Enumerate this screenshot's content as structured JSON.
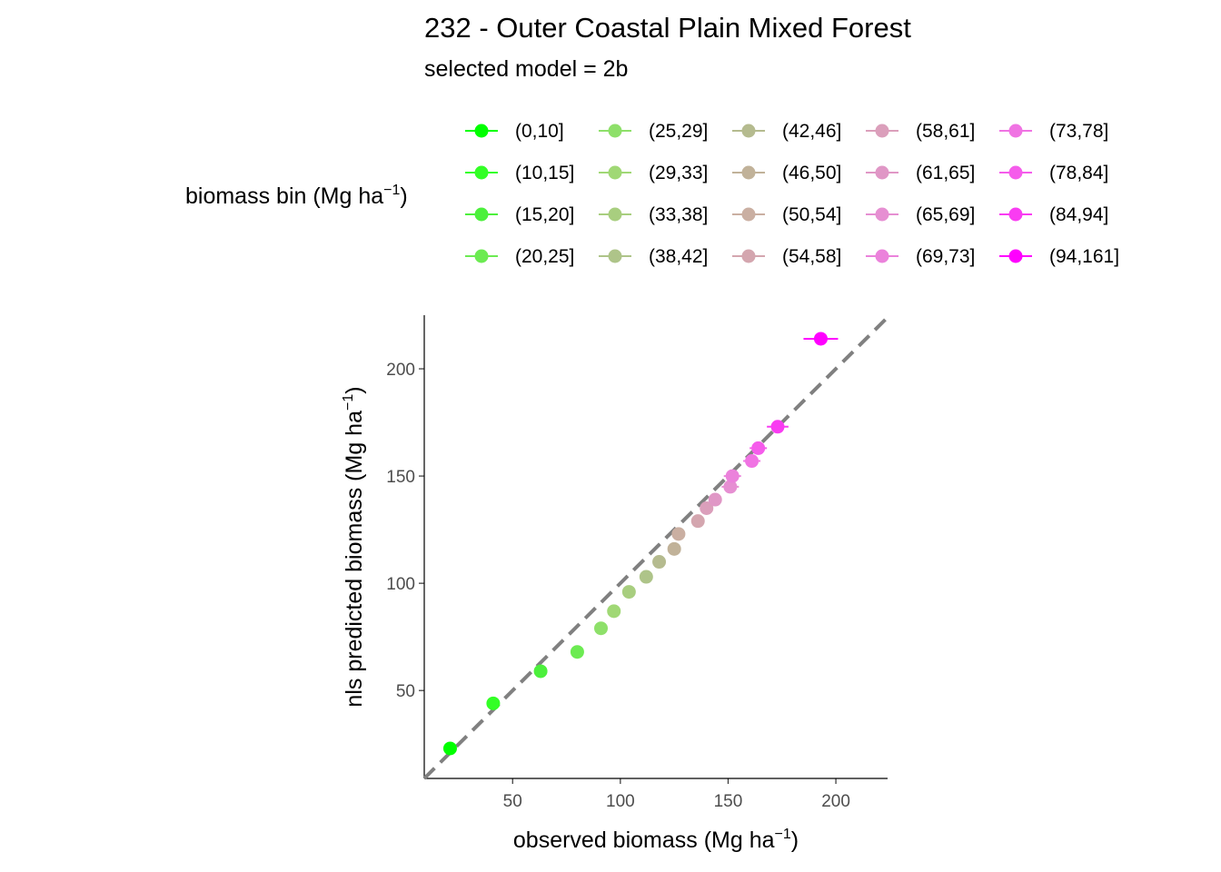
{
  "chart_data": {
    "type": "scatter",
    "title": "232 - Outer Coastal Plain Mixed Forest",
    "subtitle": "selected model = 2b",
    "xlabel": "observed biomass (Mg ha",
    "ylabel": "nls predicted biomass (Mg ha",
    "unit_exponent": "−1",
    "xlim": [
      9,
      224
    ],
    "ylim": [
      9,
      225
    ],
    "x_ticks": [
      50,
      100,
      150,
      200
    ],
    "y_ticks": [
      50,
      100,
      150,
      200
    ],
    "reference_line": "y = x",
    "legend": {
      "title": "biomass bin (Mg ha",
      "title_exponent": "−1",
      "position": "top",
      "columns": 5
    },
    "series": [
      {
        "name": "(0,10]",
        "color": "#00FF00",
        "x": 21,
        "y": 23,
        "xerr": 3
      },
      {
        "name": "(10,15]",
        "color": "#33FF26",
        "x": 41,
        "y": 44,
        "xerr": 2
      },
      {
        "name": "(15,20]",
        "color": "#4CF03C",
        "x": 63,
        "y": 59,
        "xerr": 2
      },
      {
        "name": "(20,25]",
        "color": "#6CEB52",
        "x": 80,
        "y": 68,
        "xerr": 3
      },
      {
        "name": "(25,29]",
        "color": "#8EE06A",
        "x": 91,
        "y": 79,
        "xerr": 3
      },
      {
        "name": "(29,33]",
        "color": "#A0D875",
        "x": 97,
        "y": 87,
        "xerr": 3
      },
      {
        "name": "(33,38]",
        "color": "#A8CE7F",
        "x": 104,
        "y": 96,
        "xerr": 3
      },
      {
        "name": "(38,42]",
        "color": "#AEC489",
        "x": 112,
        "y": 103,
        "xerr": 3
      },
      {
        "name": "(42,46]",
        "color": "#B5BB8F",
        "x": 118,
        "y": 110,
        "xerr": 3
      },
      {
        "name": "(46,50]",
        "color": "#C1B299",
        "x": 125,
        "y": 116,
        "xerr": 3
      },
      {
        "name": "(50,54]",
        "color": "#CAAFA2",
        "x": 127,
        "y": 123,
        "xerr": 3
      },
      {
        "name": "(54,58]",
        "color": "#D4A6AF",
        "x": 136,
        "y": 129,
        "xerr": 3
      },
      {
        "name": "(58,61]",
        "color": "#DB9FBB",
        "x": 140,
        "y": 135,
        "xerr": 3
      },
      {
        "name": "(61,65]",
        "color": "#E097C6",
        "x": 144,
        "y": 139,
        "xerr": 3
      },
      {
        "name": "(65,69]",
        "color": "#E68FD2",
        "x": 151,
        "y": 145,
        "xerr": 4
      },
      {
        "name": "(69,73]",
        "color": "#EB82DB",
        "x": 152,
        "y": 150,
        "xerr": 4
      },
      {
        "name": "(73,78]",
        "color": "#F073E3",
        "x": 161,
        "y": 157,
        "xerr": 4
      },
      {
        "name": "(78,84]",
        "color": "#F55CEB",
        "x": 164,
        "y": 163,
        "xerr": 4
      },
      {
        "name": "(84,94]",
        "color": "#F93CF2",
        "x": 173,
        "y": 173,
        "xerr": 5
      },
      {
        "name": "(94,161]",
        "color": "#FF00FF",
        "x": 193,
        "y": 214,
        "xerr": 8
      }
    ]
  }
}
